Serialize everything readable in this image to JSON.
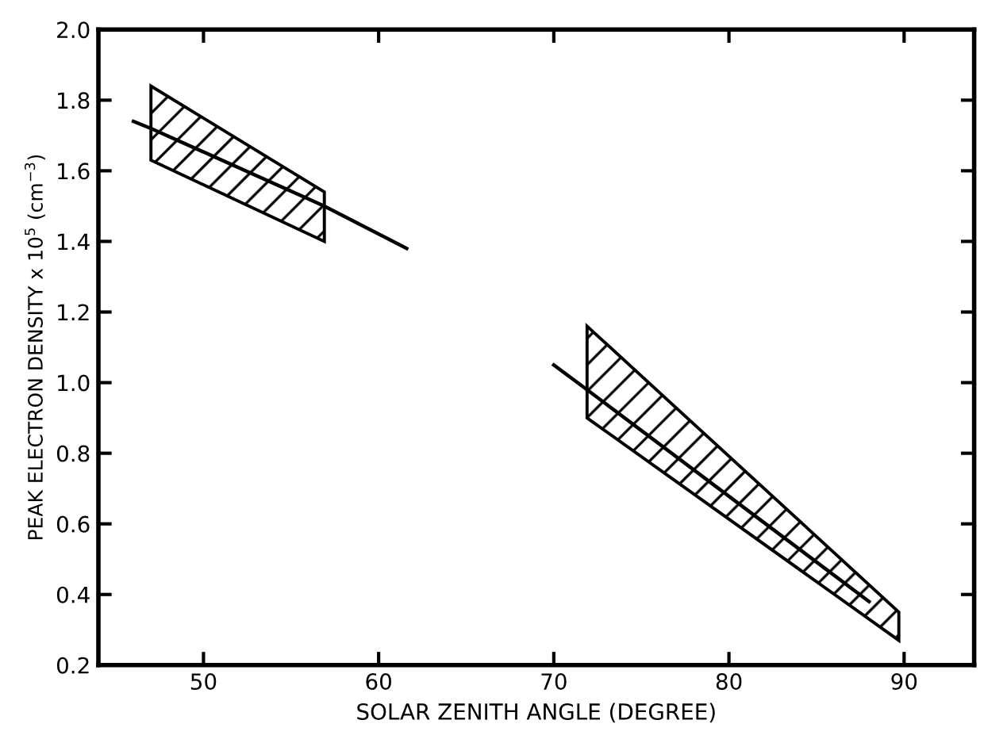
{
  "chart_data": {
    "type": "line",
    "xlabel": "SOLAR ZENITH ANGLE (DEGREE)",
    "ylabel": "PEAK ELECTRON DENSITY x 10$^{5}$ (cm$^{−3}$)",
    "xlim": [
      44,
      94
    ],
    "xticks": [
      50,
      60,
      70,
      80,
      90
    ],
    "ylim": [
      0.2,
      2.0
    ],
    "yticks": [
      {
        "value": 0.2,
        "label": "0.2"
      },
      {
        "value": 0.4,
        "label": "0.4"
      },
      {
        "value": 0.6,
        "label": "0.6"
      },
      {
        "value": 0.8,
        "label": "0.8"
      },
      {
        "value": 1.0,
        "label": "1.0"
      },
      {
        "value": 1.2,
        "label": "1.2"
      },
      {
        "value": 1.4,
        "label": "1.4"
      },
      {
        "value": 1.6,
        "label": "1.6"
      },
      {
        "value": 1.8,
        "label": "1.8"
      },
      {
        "value": 2.0,
        "label": "2.0"
      }
    ],
    "grid": false,
    "marker": "none",
    "line_style": "solid",
    "series": [
      {
        "color": "#000000",
        "x": [
          46,
          47,
          56.9,
          61.6
        ],
        "values": [
          1.74,
          1.72,
          1.5,
          1.38
        ],
        "lower": [
          null,
          1.63,
          1.4,
          null
        ],
        "upper": [
          null,
          1.84,
          1.54,
          null
        ]
      },
      {
        "color": "#000000",
        "x": [
          70,
          71.9,
          88,
          89.7
        ],
        "values": [
          1.05,
          0.98,
          0.38,
          null
        ],
        "lower": [
          null,
          0.9,
          null,
          0.27
        ],
        "upper": [
          null,
          1.16,
          null,
          0.35
        ]
      }
    ]
  }
}
